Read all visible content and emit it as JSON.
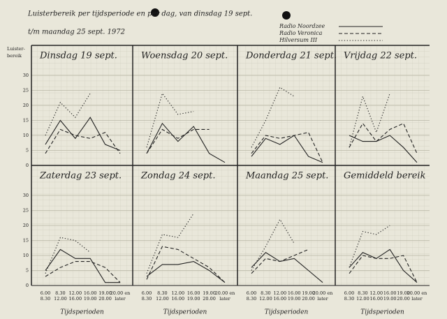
{
  "title": [
    "Luisterbereik per tijdsperiode en per dag, van dinsdag 19 sept.",
    "t/m maandag 25 sept. 1972"
  ],
  "y_label": [
    "Luister-",
    "bereik"
  ],
  "legend": [
    {
      "name": "Radio Noordzee",
      "color": "#222222",
      "style": "solid"
    },
    {
      "name": "Radio Veronica",
      "color": "#222222",
      "style": "dashed"
    },
    {
      "name": "Hilversum III",
      "color": "#222222",
      "style": "dotted"
    }
  ],
  "chart_data": [
    {
      "type": "line",
      "title": "Dinsdag 19 sept.",
      "ylim": [
        0,
        40
      ],
      "yticks": [
        0,
        5,
        10,
        15,
        20,
        25,
        30
      ],
      "series": [
        {
          "values": [
            7,
            15,
            9,
            16,
            7,
            5
          ]
        },
        {
          "values": [
            4,
            12,
            10,
            9,
            11,
            4
          ]
        },
        {
          "values": [
            10,
            21,
            16,
            24,
            null,
            null
          ]
        }
      ]
    },
    {
      "type": "line",
      "title": "Woensdag 20 sept.",
      "ylim": [
        0,
        40
      ],
      "yticks": [
        0,
        5,
        10,
        15,
        20,
        25,
        30
      ],
      "series": [
        {
          "values": [
            4,
            14,
            8,
            13,
            4,
            1
          ]
        },
        {
          "values": [
            4,
            12,
            9,
            12,
            12,
            null
          ]
        },
        {
          "values": [
            6,
            24,
            17,
            18,
            null,
            null
          ]
        }
      ]
    },
    {
      "type": "line",
      "title": "Donderdag 21 sept.",
      "ylim": [
        0,
        40
      ],
      "yticks": [
        0,
        5,
        10,
        15,
        20,
        25,
        30
      ],
      "series": [
        {
          "values": [
            3,
            9,
            7,
            10,
            3,
            1
          ]
        },
        {
          "values": [
            4,
            10,
            9,
            10,
            11,
            1
          ]
        },
        {
          "values": [
            6,
            15,
            26,
            23,
            null,
            null
          ]
        }
      ]
    },
    {
      "type": "line",
      "title": "Vrijdag 22 sept.",
      "ylim": [
        0,
        40
      ],
      "yticks": [
        0,
        5,
        10,
        15,
        20,
        25,
        30
      ],
      "series": [
        {
          "values": [
            10,
            8,
            8,
            10,
            6,
            1
          ]
        },
        {
          "values": [
            6,
            14,
            8,
            12,
            14,
            4
          ]
        },
        {
          "values": [
            6,
            23,
            11,
            24,
            null,
            null
          ]
        }
      ]
    },
    {
      "type": "line",
      "title": "Zaterdag 23 sept.",
      "xlabel": "Tijdsperioden",
      "categories": [
        [
          "6.00",
          "8.30"
        ],
        [
          "8.30",
          "12.00"
        ],
        [
          "12.00",
          "16.00"
        ],
        [
          "16.00",
          "19.00"
        ],
        [
          "19.00",
          "20.00"
        ],
        [
          "20.00 en",
          "later"
        ]
      ],
      "ylim": [
        0,
        40
      ],
      "yticks": [
        0,
        5,
        10,
        15,
        20,
        25,
        30
      ],
      "series": [
        {
          "values": [
            5,
            12,
            9,
            9,
            1,
            1
          ]
        },
        {
          "values": [
            3,
            6,
            8,
            8,
            6,
            1
          ]
        },
        {
          "values": [
            4,
            16,
            15,
            11,
            null,
            null
          ]
        }
      ]
    },
    {
      "type": "line",
      "title": "Zondag 24 sept.",
      "xlabel": "Tijdsperioden",
      "categories": [
        [
          "6.00",
          "8.30"
        ],
        [
          "8.30",
          "12.00"
        ],
        [
          "12.00",
          "16.00"
        ],
        [
          "16.00",
          "19.00"
        ],
        [
          "19.00",
          "20.00"
        ],
        [
          "20.00 en",
          "later"
        ]
      ],
      "ylim": [
        0,
        40
      ],
      "yticks": [
        0,
        5,
        10,
        15,
        20,
        25,
        30
      ],
      "series": [
        {
          "values": [
            3,
            7,
            7,
            8,
            5,
            1
          ]
        },
        {
          "values": [
            2,
            13,
            12,
            9,
            6,
            1
          ]
        },
        {
          "values": [
            4,
            17,
            16,
            24,
            null,
            null
          ]
        }
      ]
    },
    {
      "type": "line",
      "title": "Maandag 25 sept.",
      "xlabel": "Tijdsperioden",
      "categories": [
        [
          "6.00",
          "8.30"
        ],
        [
          "8.30",
          "12.00"
        ],
        [
          "12.00",
          "16.00"
        ],
        [
          "16.00",
          "19.00"
        ],
        [
          "19.00",
          "20.00"
        ],
        [
          "20.00 en",
          "later"
        ]
      ],
      "ylim": [
        0,
        40
      ],
      "yticks": [
        0,
        5,
        10,
        15,
        20,
        25,
        30
      ],
      "series": [
        {
          "values": [
            6,
            11,
            8,
            9,
            5,
            1
          ]
        },
        {
          "values": [
            4,
            9,
            8,
            10,
            12,
            null
          ]
        },
        {
          "values": [
            5,
            13,
            22,
            14,
            null,
            null
          ]
        }
      ]
    },
    {
      "type": "line",
      "title": "Gemiddeld bereik",
      "xlabel": "Tijdsperioden",
      "categories": [
        [
          "6.00",
          "8.30"
        ],
        [
          "8.30",
          "12.00"
        ],
        [
          "12.00",
          "16.00"
        ],
        [
          "16.00",
          "19.00"
        ],
        [
          "19.00",
          "20.00"
        ],
        [
          "20.00 en",
          "later"
        ]
      ],
      "ylim": [
        0,
        40
      ],
      "yticks": [
        0,
        5,
        10,
        15,
        20,
        25,
        30
      ],
      "series": [
        {
          "values": [
            6,
            11,
            9,
            12,
            5,
            1
          ]
        },
        {
          "values": [
            4,
            10,
            9,
            9,
            10,
            1
          ]
        },
        {
          "values": [
            6,
            18,
            17,
            20,
            null,
            null
          ]
        }
      ]
    }
  ]
}
